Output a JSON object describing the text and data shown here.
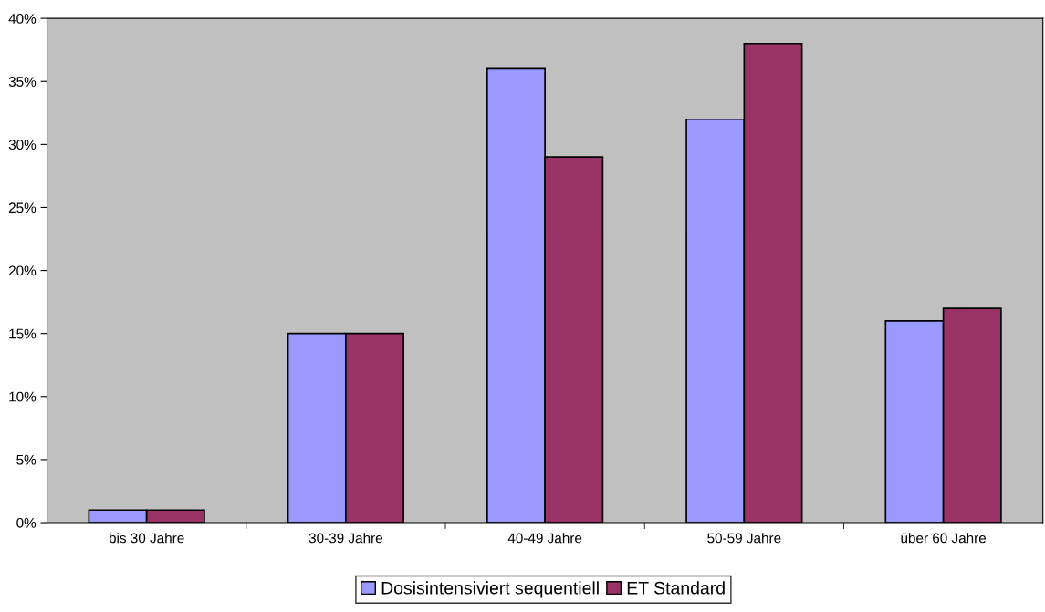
{
  "chart_data": {
    "type": "bar",
    "categories": [
      "bis 30 Jahre",
      "30-39 Jahre",
      "40-49 Jahre",
      "50-59 Jahre",
      "über 60 Jahre"
    ],
    "series": [
      {
        "name": "Dosisintensiviert sequentiell",
        "color": "#9999ff",
        "values": [
          1,
          15,
          36,
          32,
          16
        ]
      },
      {
        "name": "ET Standard",
        "color": "#993366",
        "values": [
          1,
          15,
          29,
          38,
          17
        ]
      }
    ],
    "ylim": [
      0,
      40
    ],
    "yticks": [
      {
        "value": 0,
        "label": "0%"
      },
      {
        "value": 5,
        "label": "5%"
      },
      {
        "value": 10,
        "label": "10%"
      },
      {
        "value": 15,
        "label": "15%"
      },
      {
        "value": 20,
        "label": "20%"
      },
      {
        "value": 25,
        "label": "25%"
      },
      {
        "value": 30,
        "label": "30%"
      },
      {
        "value": 35,
        "label": "35%"
      },
      {
        "value": 40,
        "label": "40%"
      }
    ],
    "grid": false,
    "legend": "bottom"
  }
}
